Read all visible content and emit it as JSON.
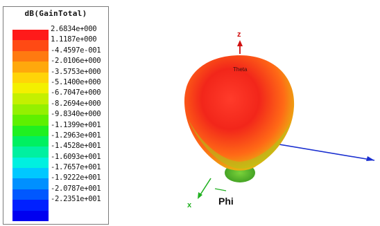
{
  "legend": {
    "title": "dB(GainTotal)",
    "colors": [
      "#ff1a1a",
      "#ff4a14",
      "#ff7a10",
      "#ffa80c",
      "#ffd408",
      "#f3f000",
      "#c4f000",
      "#94f000",
      "#5ef000",
      "#20f020",
      "#00f060",
      "#00f0a0",
      "#00f0e0",
      "#00c8ff",
      "#0090ff",
      "#0058ff",
      "#0020ff",
      "#0000f0"
    ],
    "ticks": [
      "2.6834e+000",
      "1.1187e+000",
      "-4.4597e-001",
      "-2.0106e+000",
      "-3.5753e+000",
      "-5.1400e+000",
      "-6.7047e+000",
      "-8.2694e+000",
      "-9.8340e+000",
      "-1.1399e+001",
      "-1.2963e+001",
      "-1.4528e+001",
      "-1.6093e+001",
      "-1.7657e+001",
      "-1.9222e+001",
      "-2.0787e+001",
      "-2.2351e+001"
    ]
  },
  "axes": {
    "z_label": "z",
    "x_label": "x",
    "phi_label": "Phi",
    "theta_label": "Theta",
    "z_color": "#d01010",
    "x_color": "#20b020",
    "y_color": "#1a2fd0"
  }
}
